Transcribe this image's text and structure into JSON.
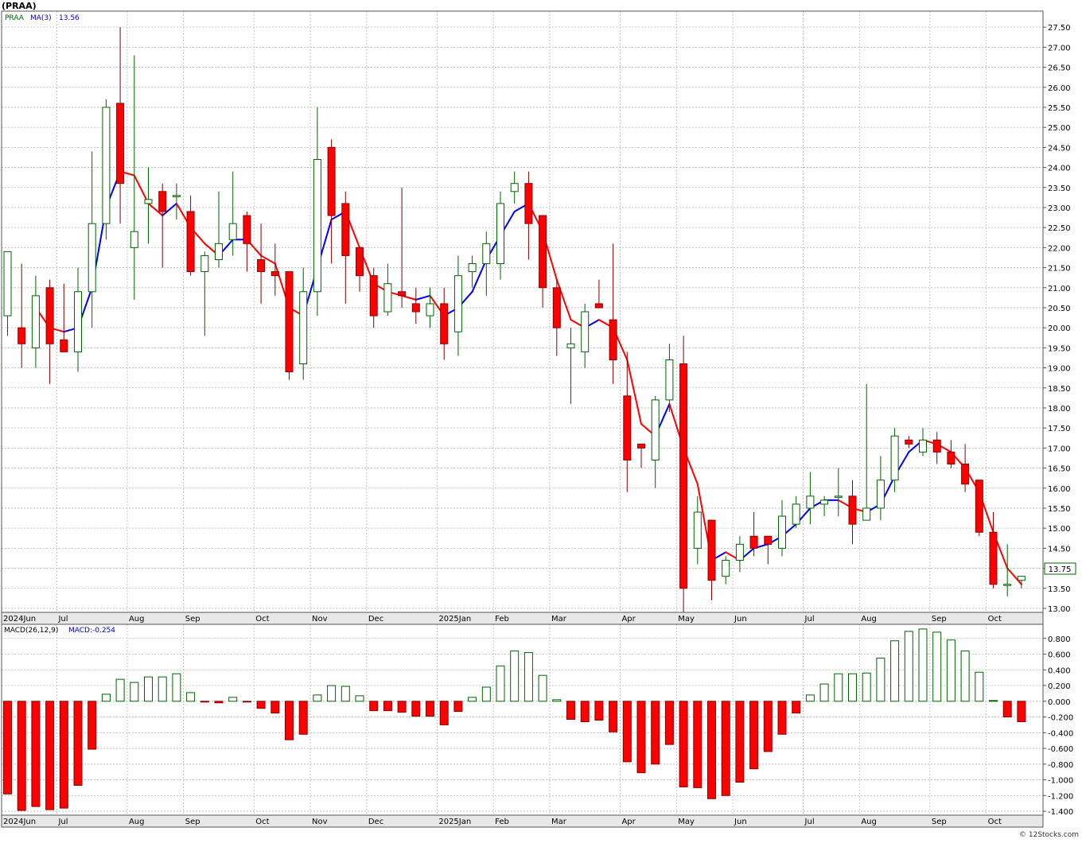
{
  "header": {
    "title": "(PRAA)",
    "credit": "© 12Stocks.com"
  },
  "price_panel": {
    "legend": {
      "symbol": "PRAA",
      "ma_label": "MA(3)",
      "ma_value": "13.56"
    },
    "last_price_label": "13.75",
    "y_ticks": [
      "27.50",
      "27.00",
      "26.50",
      "26.00",
      "25.50",
      "25.00",
      "24.50",
      "24.00",
      "23.50",
      "23.00",
      "22.50",
      "22.00",
      "21.50",
      "21.00",
      "20.50",
      "20.00",
      "19.50",
      "19.00",
      "18.50",
      "18.00",
      "17.50",
      "17.00",
      "16.50",
      "16.00",
      "15.50",
      "15.00",
      "14.50",
      "14.00",
      "13.50",
      "13.00"
    ]
  },
  "macd_panel": {
    "legend": {
      "label": "MACD(26,12,9)",
      "value_label": "MACD:-0.254"
    },
    "y_ticks": [
      "0.800",
      "0.600",
      "0.400",
      "0.200",
      "0.000",
      "-0.200",
      "-0.400",
      "-0.600",
      "-0.800",
      "-1.000",
      "-1.200",
      "-1.400"
    ]
  },
  "x_axis": {
    "month_labels": [
      "2024Jun",
      "Jul",
      "Aug",
      "Sep",
      "Oct",
      "Nov",
      "Dec",
      "2025Jan",
      "Feb",
      "Mar",
      "Apr",
      "May",
      "Jun",
      "Jul",
      "Aug",
      "Sep",
      "Oct"
    ]
  },
  "colors": {
    "up_body": "#ffffff",
    "up_outline": "#006400",
    "down_body": "#ff0000",
    "down_outline": "#8b0000",
    "ma_rising": "#0000ff",
    "ma_falling": "#ff0000",
    "grid": "#b8b8b8",
    "frame": "#555555"
  },
  "chart_data": [
    {
      "type": "candlestick",
      "title": "(PRAA)",
      "interval": "weekly",
      "ylim": [
        12.9,
        27.9
      ],
      "grid": true,
      "month_starts": [
        0,
        4,
        9,
        13,
        18,
        22,
        26,
        31,
        35,
        39,
        44,
        48,
        52,
        57,
        61,
        66,
        70
      ],
      "candles": [
        {
          "o": 20.3,
          "h": 21.9,
          "l": 19.8,
          "c": 21.9
        },
        {
          "o": 20.0,
          "h": 21.6,
          "l": 19.0,
          "c": 19.6
        },
        {
          "o": 19.5,
          "h": 21.3,
          "l": 19.0,
          "c": 20.8
        },
        {
          "o": 21.0,
          "h": 21.2,
          "l": 18.6,
          "c": 19.6
        },
        {
          "o": 19.7,
          "h": 21.1,
          "l": 19.4,
          "c": 19.4
        },
        {
          "o": 19.4,
          "h": 21.5,
          "l": 18.9,
          "c": 20.9
        },
        {
          "o": 20.9,
          "h": 24.4,
          "l": 20.0,
          "c": 22.6
        },
        {
          "o": 22.6,
          "h": 25.7,
          "l": 22.2,
          "c": 25.5
        },
        {
          "o": 25.6,
          "h": 27.5,
          "l": 22.6,
          "c": 23.6
        },
        {
          "o": 22.0,
          "h": 26.8,
          "l": 20.7,
          "c": 22.4
        },
        {
          "o": 23.1,
          "h": 24.0,
          "l": 22.1,
          "c": 23.2
        },
        {
          "o": 23.4,
          "h": 23.6,
          "l": 21.5,
          "c": 22.9
        },
        {
          "o": 23.3,
          "h": 23.6,
          "l": 22.7,
          "c": 23.3
        },
        {
          "o": 22.9,
          "h": 23.3,
          "l": 21.3,
          "c": 21.4
        },
        {
          "o": 21.4,
          "h": 21.9,
          "l": 19.8,
          "c": 21.8
        },
        {
          "o": 21.7,
          "h": 23.4,
          "l": 21.5,
          "c": 22.1
        },
        {
          "o": 22.2,
          "h": 23.9,
          "l": 21.8,
          "c": 22.6
        },
        {
          "o": 22.8,
          "h": 22.9,
          "l": 21.4,
          "c": 22.1
        },
        {
          "o": 21.7,
          "h": 22.6,
          "l": 20.6,
          "c": 21.4
        },
        {
          "o": 21.4,
          "h": 22.1,
          "l": 20.8,
          "c": 21.3
        },
        {
          "o": 21.4,
          "h": 21.4,
          "l": 18.7,
          "c": 18.9
        },
        {
          "o": 19.1,
          "h": 21.5,
          "l": 18.7,
          "c": 20.9
        },
        {
          "o": 20.9,
          "h": 25.5,
          "l": 20.3,
          "c": 24.2
        },
        {
          "o": 24.5,
          "h": 24.7,
          "l": 21.6,
          "c": 22.8
        },
        {
          "o": 23.1,
          "h": 23.4,
          "l": 20.6,
          "c": 21.8
        },
        {
          "o": 22.0,
          "h": 22.0,
          "l": 20.9,
          "c": 21.3
        },
        {
          "o": 21.3,
          "h": 21.5,
          "l": 20.0,
          "c": 20.3
        },
        {
          "o": 20.4,
          "h": 21.6,
          "l": 20.3,
          "c": 21.1
        },
        {
          "o": 20.9,
          "h": 23.5,
          "l": 20.5,
          "c": 20.8
        },
        {
          "o": 20.6,
          "h": 21.0,
          "l": 20.1,
          "c": 20.4
        },
        {
          "o": 20.3,
          "h": 21.0,
          "l": 20.0,
          "c": 20.6
        },
        {
          "o": 20.6,
          "h": 21.0,
          "l": 19.2,
          "c": 19.6
        },
        {
          "o": 19.9,
          "h": 21.8,
          "l": 19.3,
          "c": 21.3
        },
        {
          "o": 21.4,
          "h": 21.8,
          "l": 21.0,
          "c": 21.6
        },
        {
          "o": 21.6,
          "h": 22.4,
          "l": 20.8,
          "c": 22.1
        },
        {
          "o": 21.6,
          "h": 23.4,
          "l": 21.2,
          "c": 23.1
        },
        {
          "o": 23.4,
          "h": 23.9,
          "l": 23.1,
          "c": 23.6
        },
        {
          "o": 23.6,
          "h": 23.9,
          "l": 21.7,
          "c": 22.6
        },
        {
          "o": 22.8,
          "h": 22.8,
          "l": 20.5,
          "c": 21.0
        },
        {
          "o": 21.0,
          "h": 21.2,
          "l": 19.3,
          "c": 20.0
        },
        {
          "o": 19.5,
          "h": 20.0,
          "l": 18.1,
          "c": 19.6
        },
        {
          "o": 19.4,
          "h": 20.6,
          "l": 19.0,
          "c": 20.4
        },
        {
          "o": 20.6,
          "h": 21.2,
          "l": 20.5,
          "c": 20.5
        },
        {
          "o": 20.2,
          "h": 22.1,
          "l": 18.6,
          "c": 19.2
        },
        {
          "o": 18.3,
          "h": 19.4,
          "l": 15.9,
          "c": 16.7
        },
        {
          "o": 17.1,
          "h": 17.1,
          "l": 16.5,
          "c": 17.0
        },
        {
          "o": 16.7,
          "h": 18.3,
          "l": 16.0,
          "c": 18.2
        },
        {
          "o": 18.2,
          "h": 19.6,
          "l": 17.9,
          "c": 19.2
        },
        {
          "o": 19.1,
          "h": 19.8,
          "l": 12.9,
          "c": 13.5
        },
        {
          "o": 14.5,
          "h": 15.8,
          "l": 14.1,
          "c": 15.4
        },
        {
          "o": 15.2,
          "h": 15.2,
          "l": 13.2,
          "c": 13.7
        },
        {
          "o": 13.8,
          "h": 14.3,
          "l": 13.6,
          "c": 14.2
        },
        {
          "o": 14.2,
          "h": 14.8,
          "l": 13.9,
          "c": 14.6
        },
        {
          "o": 14.8,
          "h": 15.4,
          "l": 14.3,
          "c": 14.5
        },
        {
          "o": 14.8,
          "h": 14.8,
          "l": 14.1,
          "c": 14.6
        },
        {
          "o": 14.5,
          "h": 15.7,
          "l": 14.3,
          "c": 15.3
        },
        {
          "o": 15.1,
          "h": 15.8,
          "l": 15.0,
          "c": 15.6
        },
        {
          "o": 15.5,
          "h": 16.4,
          "l": 15.1,
          "c": 15.8
        },
        {
          "o": 15.6,
          "h": 15.8,
          "l": 15.3,
          "c": 15.7
        },
        {
          "o": 15.8,
          "h": 16.5,
          "l": 15.3,
          "c": 15.8
        },
        {
          "o": 15.8,
          "h": 16.2,
          "l": 14.6,
          "c": 15.1
        },
        {
          "o": 15.2,
          "h": 18.6,
          "l": 15.2,
          "c": 15.5
        },
        {
          "o": 15.5,
          "h": 16.8,
          "l": 15.2,
          "c": 16.2
        },
        {
          "o": 16.2,
          "h": 17.5,
          "l": 15.9,
          "c": 17.3
        },
        {
          "o": 17.2,
          "h": 17.3,
          "l": 17.0,
          "c": 17.1
        },
        {
          "o": 16.9,
          "h": 17.5,
          "l": 16.8,
          "c": 17.2
        },
        {
          "o": 17.2,
          "h": 17.4,
          "l": 16.6,
          "c": 16.9
        },
        {
          "o": 16.9,
          "h": 17.2,
          "l": 16.5,
          "c": 16.6
        },
        {
          "o": 16.6,
          "h": 17.1,
          "l": 15.9,
          "c": 16.1
        },
        {
          "o": 16.2,
          "h": 16.2,
          "l": 14.8,
          "c": 14.9
        },
        {
          "o": 14.9,
          "h": 15.4,
          "l": 13.5,
          "c": 13.6
        },
        {
          "o": 13.6,
          "h": 14.6,
          "l": 13.3,
          "c": 13.6
        },
        {
          "o": 13.7,
          "h": 13.8,
          "l": 13.5,
          "c": 13.8
        }
      ],
      "ma3": [
        null,
        null,
        20.5,
        20.0,
        19.9,
        20.0,
        21.0,
        23.0,
        23.9,
        23.8,
        23.1,
        22.8,
        23.1,
        22.5,
        22.1,
        21.8,
        22.2,
        22.2,
        21.8,
        21.6,
        20.5,
        20.3,
        21.5,
        22.7,
        22.9,
        22.0,
        21.1,
        20.9,
        20.8,
        20.7,
        20.8,
        20.3,
        20.5,
        20.9,
        21.7,
        22.3,
        22.9,
        23.1,
        22.4,
        21.2,
        20.2,
        20.0,
        20.2,
        20.0,
        19.2,
        17.6,
        17.3,
        18.1,
        17.0,
        16.1,
        14.2,
        14.4,
        14.2,
        14.5,
        14.6,
        14.8,
        15.1,
        15.5,
        15.7,
        15.7,
        15.5,
        15.4,
        15.6,
        16.3,
        16.9,
        17.2,
        17.1,
        16.9,
        16.5,
        15.9,
        14.9,
        14.0,
        13.6
      ]
    },
    {
      "type": "bar",
      "title": "MACD(26,12,9)",
      "ylim": [
        -1.45,
        0.98
      ],
      "grid": true,
      "values": [
        -1.18,
        -1.39,
        -1.34,
        -1.38,
        -1.36,
        -1.07,
        -0.61,
        0.09,
        0.28,
        0.24,
        0.31,
        0.31,
        0.35,
        0.11,
        -0.01,
        -0.02,
        0.05,
        -0.01,
        -0.09,
        -0.15,
        -0.49,
        -0.42,
        0.08,
        0.2,
        0.19,
        0.07,
        -0.12,
        -0.12,
        -0.14,
        -0.19,
        -0.19,
        -0.3,
        -0.13,
        0.05,
        0.18,
        0.45,
        0.64,
        0.62,
        0.33,
        0.02,
        -0.23,
        -0.26,
        -0.24,
        -0.39,
        -0.77,
        -0.91,
        -0.8,
        -0.55,
        -1.09,
        -1.1,
        -1.24,
        -1.2,
        -1.03,
        -0.86,
        -0.64,
        -0.42,
        -0.15,
        0.08,
        0.22,
        0.35,
        0.35,
        0.36,
        0.55,
        0.77,
        0.89,
        0.92,
        0.88,
        0.78,
        0.64,
        0.37,
        0.01,
        -0.2,
        -0.26
      ]
    }
  ]
}
